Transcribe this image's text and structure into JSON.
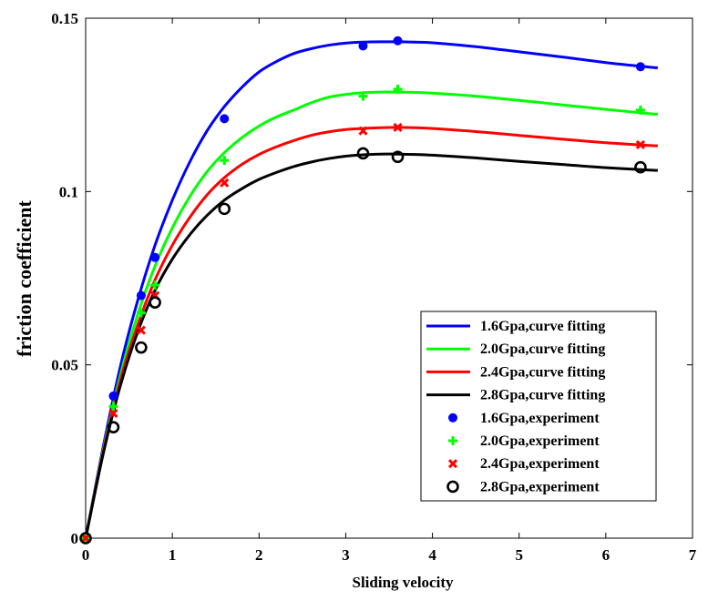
{
  "chart_data": {
    "type": "line",
    "xlabel": "Sliding velocity",
    "ylabel": "friction coefficient",
    "xlim": [
      0,
      7
    ],
    "ylim": [
      0,
      0.15
    ],
    "xticks": [
      0,
      1,
      2,
      3,
      4,
      5,
      6,
      7
    ],
    "yticks": [
      0,
      0.05,
      0.1,
      0.15
    ],
    "xtick_labels": [
      "0",
      "1",
      "2",
      "3",
      "4",
      "5",
      "6",
      "7"
    ],
    "ytick_labels": [
      "0",
      "0.05",
      "0.1",
      "0.15"
    ],
    "legend_position": "lower-right",
    "grid": false,
    "fit_series": [
      {
        "name": "1.6Gpa,curve fitting",
        "color": "#0000ff",
        "x": [
          0,
          0.2,
          0.4,
          0.6,
          0.8,
          1.0,
          1.2,
          1.4,
          1.6,
          1.8,
          2.0,
          2.2,
          2.4,
          2.6,
          2.8,
          3.0,
          3.2,
          3.4,
          3.6,
          3.8,
          4.0,
          4.5,
          5.0,
          5.5,
          6.0,
          6.5,
          6.6
        ],
        "y": [
          0,
          0.026,
          0.0495,
          0.0685,
          0.0845,
          0.0975,
          0.1085,
          0.1175,
          0.1245,
          0.13,
          0.1345,
          0.1375,
          0.1398,
          0.1412,
          0.1422,
          0.1428,
          0.1431,
          0.1432,
          0.1432,
          0.1431,
          0.1429,
          0.1418,
          0.1403,
          0.1388,
          0.1372,
          0.1359,
          0.1357
        ]
      },
      {
        "name": "2.0Gpa,curve fitting",
        "color": "#00ff00",
        "x": [
          0,
          0.2,
          0.4,
          0.6,
          0.8,
          1.0,
          1.2,
          1.4,
          1.6,
          1.8,
          2.0,
          2.2,
          2.4,
          2.6,
          2.8,
          3.0,
          3.2,
          3.4,
          3.6,
          3.8,
          4.0,
          4.5,
          5.0,
          5.5,
          6.0,
          6.5,
          6.6
        ],
        "y": [
          0,
          0.025,
          0.047,
          0.0645,
          0.0785,
          0.0895,
          0.0985,
          0.1057,
          0.1112,
          0.1155,
          0.1189,
          0.1215,
          0.1235,
          0.1256,
          0.1272,
          0.128,
          0.1285,
          0.1287,
          0.1287,
          0.1286,
          0.1284,
          0.1275,
          0.1263,
          0.125,
          0.1237,
          0.1225,
          0.1223
        ]
      },
      {
        "name": "2.4Gpa,curve fitting",
        "color": "#ff0000",
        "x": [
          0,
          0.2,
          0.4,
          0.6,
          0.8,
          1.0,
          1.2,
          1.4,
          1.6,
          1.8,
          2.0,
          2.2,
          2.4,
          2.6,
          2.8,
          3.0,
          3.2,
          3.4,
          3.6,
          3.8,
          4.0,
          4.5,
          5.0,
          5.5,
          6.0,
          6.5,
          6.6
        ],
        "y": [
          0,
          0.0245,
          0.0455,
          0.0615,
          0.0745,
          0.0845,
          0.0925,
          0.099,
          0.104,
          0.1078,
          0.1107,
          0.1129,
          0.1147,
          0.1162,
          0.1172,
          0.1179,
          0.1182,
          0.1184,
          0.1185,
          0.1184,
          0.1182,
          0.1173,
          0.1162,
          0.1151,
          0.1141,
          0.1133,
          0.1132
        ]
      },
      {
        "name": "2.8Gpa,curve fitting",
        "color": "#000000",
        "x": [
          0,
          0.2,
          0.4,
          0.6,
          0.8,
          1.0,
          1.2,
          1.4,
          1.6,
          1.8,
          2.0,
          2.2,
          2.4,
          2.6,
          2.8,
          3.0,
          3.2,
          3.4,
          3.6,
          3.8,
          4.0,
          4.5,
          5.0,
          5.5,
          6.0,
          6.5,
          6.6
        ],
        "y": [
          0,
          0.024,
          0.044,
          0.0595,
          0.0715,
          0.0805,
          0.0875,
          0.0931,
          0.0975,
          0.1008,
          0.1035,
          0.1055,
          0.1072,
          0.1085,
          0.1095,
          0.1102,
          0.1106,
          0.1108,
          0.1108,
          0.1107,
          0.1105,
          0.1097,
          0.1087,
          0.1078,
          0.1069,
          0.1062,
          0.1061
        ]
      }
    ],
    "experiment_series": [
      {
        "name": "1.6Gpa,experiment",
        "color": "#0000ff",
        "marker": "dot",
        "x": [
          0,
          0.32,
          0.64,
          0.8,
          1.6,
          3.2,
          3.6,
          6.4
        ],
        "y": [
          0,
          0.041,
          0.07,
          0.081,
          0.121,
          0.142,
          0.1435,
          0.136
        ]
      },
      {
        "name": "2.0Gpa,experiment",
        "color": "#00ff00",
        "marker": "plus",
        "x": [
          0,
          0.32,
          0.64,
          0.8,
          1.6,
          3.2,
          3.6,
          6.4
        ],
        "y": [
          0,
          0.038,
          0.065,
          0.073,
          0.109,
          0.1275,
          0.1295,
          0.1235
        ]
      },
      {
        "name": "2.4Gpa,experiment",
        "color": "#ff0000",
        "marker": "x",
        "x": [
          0,
          0.32,
          0.64,
          0.8,
          1.6,
          3.2,
          3.6,
          6.4
        ],
        "y": [
          0,
          0.036,
          0.06,
          0.07,
          0.1025,
          0.1175,
          0.1185,
          0.1135
        ]
      },
      {
        "name": "2.8Gpa,experiment",
        "color": "#000000",
        "marker": "circle",
        "x": [
          0,
          0.32,
          0.64,
          0.8,
          1.6,
          3.2,
          3.6,
          6.4
        ],
        "y": [
          0,
          0.032,
          0.055,
          0.068,
          0.095,
          0.111,
          0.11,
          0.107
        ]
      }
    ]
  }
}
